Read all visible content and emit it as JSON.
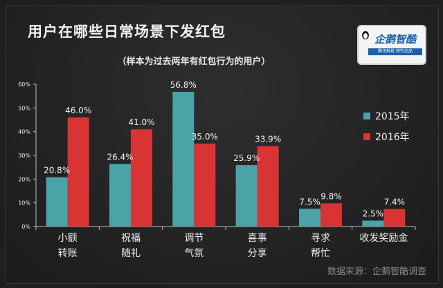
{
  "header": {
    "title": "用户在哪些日常场景下发红包",
    "subtitle": "（样本为过去两年有红包行为的用户）"
  },
  "logo": {
    "text": "企鹅智酷",
    "tagline": "腾讯科技 研究出品"
  },
  "footer": {
    "source": "数据来源：企鹅智酷调查"
  },
  "colors": {
    "series_2015": "#4ba3a8",
    "series_2016": "#d83434",
    "text": "#f0f0f0",
    "axis": "#bdbdbd"
  },
  "chart_data": {
    "type": "bar",
    "title": "用户在哪些日常场景下发红包",
    "subtitle": "（样本为过去两年有红包行为的用户）",
    "categories": [
      [
        "小额",
        "转账"
      ],
      [
        "祝福",
        "随礼"
      ],
      [
        "调节",
        "气氛"
      ],
      [
        "喜事",
        "分享"
      ],
      [
        "寻求",
        "帮忙"
      ],
      [
        "收发奖励金"
      ]
    ],
    "series": [
      {
        "name": "2015年",
        "values": [
          20.8,
          26.4,
          56.8,
          25.9,
          7.5,
          2.5
        ]
      },
      {
        "name": "2016年",
        "values": [
          46.0,
          41.0,
          35.0,
          33.9,
          9.8,
          7.4
        ]
      }
    ],
    "data_labels": [
      [
        "20.8%",
        "26.4%",
        "56.8%",
        "25.9%",
        "7.5%",
        "2.5%"
      ],
      [
        "46.0%",
        "41.0%",
        "35.0%",
        "33.9%",
        "9.8%",
        "7.4%"
      ]
    ],
    "yticks": [
      "0%",
      "10%",
      "20%",
      "30%",
      "40%",
      "50%",
      "60%"
    ],
    "ylim": [
      0,
      60
    ],
    "xlabel": "",
    "ylabel": "",
    "legend_position": "right",
    "grid": false
  }
}
